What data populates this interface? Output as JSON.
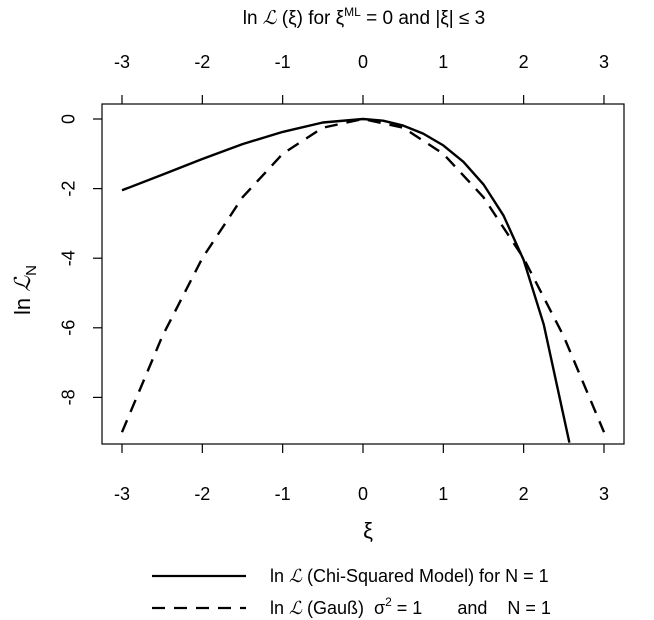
{
  "chart_data": {
    "type": "line",
    "title": {
      "prefix": "ln ",
      "script": "ℒ",
      "mid": " (ξ) for ξ",
      "sup": "ML",
      "suffix": " = 0 and |ξ| ≤ 3"
    },
    "xlabel": "ξ",
    "ylabel": {
      "prefix": "ln ",
      "script": "ℒ",
      "sub": "N"
    },
    "xlim": [
      -3,
      3
    ],
    "ylim": [
      -9.3,
      0.3
    ],
    "x_ticks": [
      -3,
      -2,
      -1,
      0,
      1,
      2,
      3
    ],
    "y_ticks": [
      0,
      -2,
      -4,
      -6,
      -8
    ],
    "x_tick_labels": [
      "-3",
      "-2",
      "-1",
      "0",
      "1",
      "2",
      "3"
    ],
    "y_tick_labels": [
      "0",
      "-2",
      "-4",
      "-6",
      "-8"
    ],
    "top_axis": true,
    "grid": false,
    "legend_position": "bottom",
    "series": [
      {
        "style": "solid",
        "x": [
          -3,
          -2.5,
          -2,
          -1.5,
          -1,
          -0.5,
          0,
          0.25,
          0.5,
          0.75,
          1,
          1.25,
          1.5,
          1.75,
          2,
          2.25,
          2.5,
          2.57
        ],
        "y": [
          -2.05,
          -1.6,
          -1.15,
          -0.72,
          -0.37,
          -0.1,
          0,
          -0.05,
          -0.19,
          -0.42,
          -0.76,
          -1.23,
          -1.88,
          -2.78,
          -4.05,
          -5.9,
          -8.56,
          -9.3
        ]
      },
      {
        "style": "dashed",
        "x": [
          -3,
          -2.5,
          -2,
          -1.5,
          -1,
          -0.5,
          0,
          0.5,
          1,
          1.5,
          2,
          2.5,
          3
        ],
        "y": [
          -9,
          -6.25,
          -4,
          -2.25,
          -1,
          -0.25,
          0,
          -0.25,
          -1,
          -2.25,
          -4,
          -6.25,
          -9
        ]
      }
    ],
    "legend": [
      {
        "style": "solid",
        "prefix": "ln ",
        "script": "ℒ",
        "text": " (Chi-Squared Model) for N = 1"
      },
      {
        "style": "dashed",
        "prefix": "ln ",
        "script": "ℒ",
        "text": " (Gauß)  σ",
        "sup": "2",
        "after": " = 1       and    N = 1"
      }
    ],
    "colors": {
      "line": "#000000",
      "axis": "#000000",
      "background": "#ffffff"
    }
  }
}
